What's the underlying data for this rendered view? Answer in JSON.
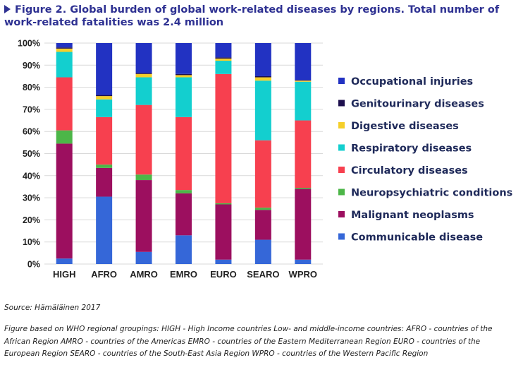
{
  "title": "Figure 2. Global burden of global work-related diseases by regions. Total number of work-related fatalities was 2.4 million",
  "source": "Source: Hämäläinen 2017",
  "caption": "Figure based on WHO regional groupings: HIGH - High Income countries Low- and middle-income countries: AFRO - countries of the African Region AMRO - countries of the Americas EMRO - countries of the Eastern Mediterranean Region EURO - countries of the European Region SEARO - countries of the South-East Asia Region WPRO - countries of the Western Pacific Region",
  "chart_data": {
    "type": "bar",
    "stacked": true,
    "percent": true,
    "categories": [
      "HIGH",
      "AFRO",
      "AMRO",
      "EMRO",
      "EURO",
      "SEARO",
      "WPRO"
    ],
    "ylim": [
      0,
      100
    ],
    "yticks": [
      "0%",
      "10%",
      "20%",
      "30%",
      "40%",
      "50%",
      "60%",
      "70%",
      "80%",
      "90%",
      "100%"
    ],
    "grid": true,
    "legend_position": "right",
    "series": [
      {
        "name": "Communicable disease",
        "color": "#3567d8",
        "values": [
          2.5,
          30.5,
          5.5,
          13,
          2,
          11,
          2
        ]
      },
      {
        "name": "Malignant neoplasms",
        "color": "#9c0f5f",
        "values": [
          52,
          13,
          32.5,
          19,
          25,
          13.5,
          32
        ]
      },
      {
        "name": "Neuropsychiatric conditions",
        "color": "#4cb648",
        "values": [
          6,
          1.5,
          2.5,
          1.5,
          0.5,
          1,
          0.5
        ]
      },
      {
        "name": "Circulatory diseases",
        "color": "#f7404f",
        "values": [
          24,
          21.5,
          31.5,
          33,
          58.5,
          30.5,
          30.5
        ]
      },
      {
        "name": "Respiratory diseases",
        "color": "#13cfcf",
        "values": [
          11.5,
          8,
          12.5,
          18,
          6,
          27,
          17.5
        ]
      },
      {
        "name": "Digestive diseases",
        "color": "#f5cf2a",
        "values": [
          1.5,
          1.5,
          1.5,
          1,
          1,
          1.5,
          0.5
        ]
      },
      {
        "name": "Genitourinary diseases",
        "color": "#1c0f4d",
        "values": [
          0.5,
          0.5,
          0.5,
          0.5,
          0.5,
          0.5,
          0.2
        ]
      },
      {
        "name": "Occupational injuries",
        "color": "#2232c2",
        "values": [
          2,
          23.5,
          13.5,
          14,
          6.5,
          15,
          16.8
        ]
      }
    ]
  }
}
